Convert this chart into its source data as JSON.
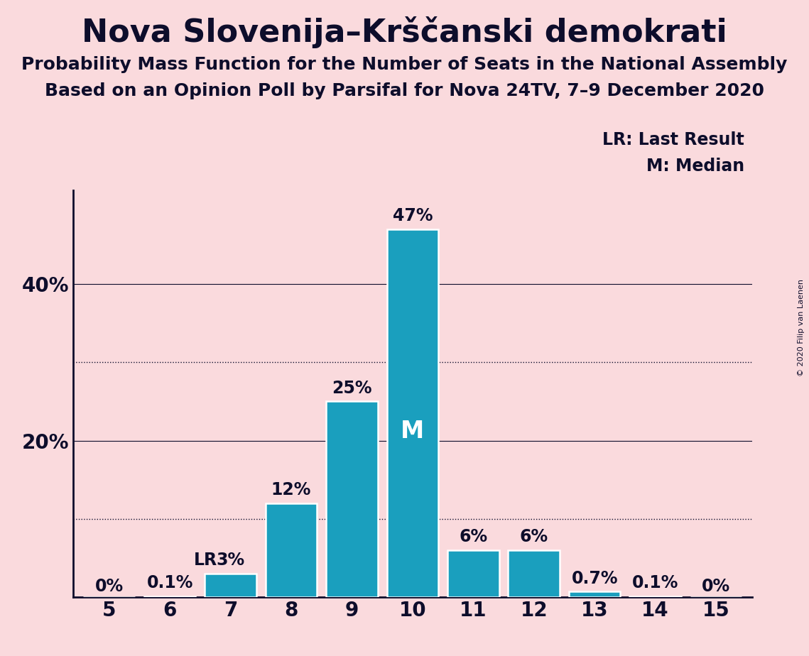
{
  "title": "Nova Slovenija–Krščanski demokrati",
  "subtitle1": "Probability Mass Function for the Number of Seats in the National Assembly",
  "subtitle2": "Based on an Opinion Poll by Parsifal for Nova 24TV, 7–9 December 2020",
  "copyright": "© 2020 Filip van Laenen",
  "categories": [
    5,
    6,
    7,
    8,
    9,
    10,
    11,
    12,
    13,
    14,
    15
  ],
  "values": [
    0.0,
    0.1,
    3.0,
    12.0,
    25.0,
    47.0,
    6.0,
    6.0,
    0.7,
    0.1,
    0.0
  ],
  "labels": [
    "0%",
    "0.1%",
    "3%",
    "12%",
    "25%",
    "47%",
    "6%",
    "6%",
    "0.7%",
    "0.1%",
    "0%"
  ],
  "bar_color": "#1a9fbe",
  "background_color": "#fadadd",
  "text_color": "#0d0d2b",
  "bar_edge_color": "white",
  "median_seat": 10,
  "lr_seat": 7,
  "ylim": [
    0,
    52
  ],
  "dotted_lines": [
    10,
    30
  ],
  "solid_lines": [
    20,
    40
  ],
  "ytick_values": [
    20,
    40
  ],
  "ytick_labels": [
    "20%",
    "40%"
  ],
  "legend_lr": "LR: Last Result",
  "legend_m": "M: Median",
  "title_fontsize": 32,
  "subtitle_fontsize": 18,
  "label_fontsize": 17,
  "tick_fontsize": 20
}
